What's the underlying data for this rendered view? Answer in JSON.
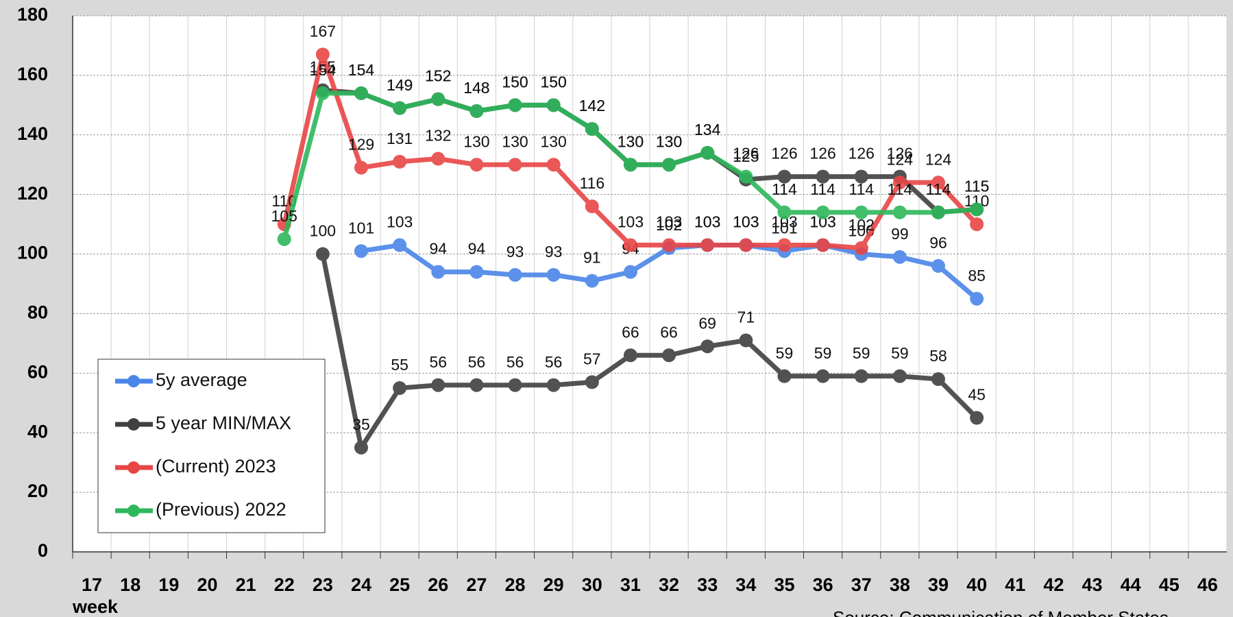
{
  "chart_data": {
    "type": "line",
    "categories": [
      "17",
      "18",
      "19",
      "20",
      "21",
      "22",
      "23",
      "24",
      "25",
      "26",
      "27",
      "28",
      "29",
      "30",
      "31",
      "32",
      "33",
      "34",
      "35",
      "36",
      "37",
      "38",
      "39",
      "40",
      "41",
      "42",
      "43",
      "44",
      "45",
      "46"
    ],
    "x_label": "week",
    "source": "Source: Communication of Member States",
    "ylim": [
      0,
      180
    ],
    "yticks": [
      0,
      20,
      40,
      60,
      80,
      100,
      120,
      140,
      160,
      180
    ],
    "grid": true,
    "legend": "lower left",
    "series": [
      {
        "name": "5y average",
        "color": "#4a86e8",
        "values": [
          null,
          null,
          null,
          null,
          null,
          null,
          null,
          101,
          103,
          94,
          94,
          93,
          93,
          91,
          94,
          102,
          103,
          103,
          101,
          103,
          100,
          99,
          96,
          85,
          null,
          null,
          null,
          null,
          null,
          null
        ]
      },
      {
        "name": "5 year MIN/MAX",
        "color": "#404040",
        "values": [
          null,
          null,
          null,
          null,
          null,
          null,
          100,
          35,
          55,
          56,
          56,
          56,
          56,
          57,
          66,
          66,
          69,
          71,
          59,
          59,
          59,
          59,
          58,
          45,
          null,
          null,
          null,
          null,
          null,
          null
        ]
      },
      {
        "color": "#404040",
        "values": [
          null,
          null,
          null,
          null,
          null,
          null,
          155,
          154,
          149,
          152,
          148,
          150,
          150,
          142,
          130,
          130,
          134,
          125,
          126,
          126,
          126,
          126,
          114,
          115,
          null,
          null,
          null,
          null,
          null,
          null
        ]
      },
      {
        "name": " (Current) 2023",
        "color": "#e84545",
        "values": [
          null,
          null,
          null,
          null,
          null,
          110,
          167,
          129,
          131,
          132,
          130,
          130,
          130,
          116,
          103,
          103,
          103,
          103,
          103,
          103,
          102,
          124,
          124,
          110,
          null,
          null,
          null,
          null,
          null,
          null
        ]
      },
      {
        "name": "(Previous) 2022",
        "color": "#2eb85c",
        "values": [
          null,
          null,
          null,
          null,
          null,
          105,
          154,
          154,
          149,
          152,
          148,
          150,
          150,
          142,
          130,
          130,
          134,
          126,
          114,
          114,
          114,
          114,
          114,
          115,
          null,
          null,
          null,
          null,
          null,
          null
        ]
      }
    ]
  }
}
